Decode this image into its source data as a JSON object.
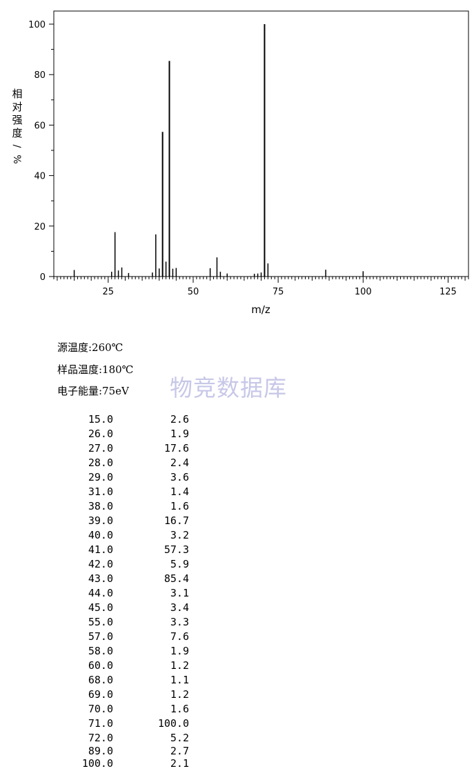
{
  "chart_data": {
    "type": "bar",
    "xlabel": "m/z",
    "ylabel": "相对强度/%",
    "xlim": [
      9,
      131
    ],
    "ylim": [
      0,
      105
    ],
    "xticks": [
      25,
      50,
      75,
      100,
      125
    ],
    "yticks": [
      0,
      20,
      40,
      60,
      80,
      100
    ],
    "grid": false,
    "peaks": [
      {
        "x": 15,
        "y": 2.6
      },
      {
        "x": 26,
        "y": 1.9
      },
      {
        "x": 27,
        "y": 17.6
      },
      {
        "x": 28,
        "y": 2.4
      },
      {
        "x": 29,
        "y": 3.6
      },
      {
        "x": 31,
        "y": 1.4
      },
      {
        "x": 38,
        "y": 1.6
      },
      {
        "x": 39,
        "y": 16.7
      },
      {
        "x": 40,
        "y": 3.2
      },
      {
        "x": 41,
        "y": 57.3
      },
      {
        "x": 42,
        "y": 5.9
      },
      {
        "x": 43,
        "y": 85.4
      },
      {
        "x": 44,
        "y": 3.1
      },
      {
        "x": 45,
        "y": 3.4
      },
      {
        "x": 55,
        "y": 3.3
      },
      {
        "x": 57,
        "y": 7.6
      },
      {
        "x": 58,
        "y": 1.9
      },
      {
        "x": 60,
        "y": 1.2
      },
      {
        "x": 68,
        "y": 1.1
      },
      {
        "x": 69,
        "y": 1.2
      },
      {
        "x": 70,
        "y": 1.6
      },
      {
        "x": 71,
        "y": 100.0
      },
      {
        "x": 72,
        "y": 5.2
      },
      {
        "x": 89,
        "y": 2.7
      },
      {
        "x": 100,
        "y": 2.1
      }
    ]
  },
  "conditions": [
    "源温度:260℃",
    "样品温度:180℃",
    "电子能量:75eV"
  ],
  "watermark": "物竞数据库",
  "peak_table": [
    {
      "mz": "15.0",
      "intensity": "2.6"
    },
    {
      "mz": "26.0",
      "intensity": "1.9"
    },
    {
      "mz": "27.0",
      "intensity": "17.6"
    },
    {
      "mz": "28.0",
      "intensity": "2.4"
    },
    {
      "mz": "29.0",
      "intensity": "3.6"
    },
    {
      "mz": "31.0",
      "intensity": "1.4"
    },
    {
      "mz": "38.0",
      "intensity": "1.6"
    },
    {
      "mz": "39.0",
      "intensity": "16.7"
    },
    {
      "mz": "40.0",
      "intensity": "3.2"
    },
    {
      "mz": "41.0",
      "intensity": "57.3"
    },
    {
      "mz": "42.0",
      "intensity": "5.9"
    },
    {
      "mz": "43.0",
      "intensity": "85.4"
    },
    {
      "mz": "44.0",
      "intensity": "3.1"
    },
    {
      "mz": "45.0",
      "intensity": "3.4"
    },
    {
      "mz": "55.0",
      "intensity": "3.3"
    },
    {
      "mz": "57.0",
      "intensity": "7.6"
    },
    {
      "mz": "58.0",
      "intensity": "1.9"
    },
    {
      "mz": "60.0",
      "intensity": "1.2"
    },
    {
      "mz": "68.0",
      "intensity": "1.1"
    },
    {
      "mz": "69.0",
      "intensity": "1.2"
    },
    {
      "mz": "70.0",
      "intensity": "1.6"
    },
    {
      "mz": "71.0",
      "intensity": "100.0"
    },
    {
      "mz": "72.0",
      "intensity": "5.2"
    },
    {
      "mz": "89.0",
      "intensity": "2.7"
    },
    {
      "mz": "100.0",
      "intensity": "2.1"
    }
  ]
}
